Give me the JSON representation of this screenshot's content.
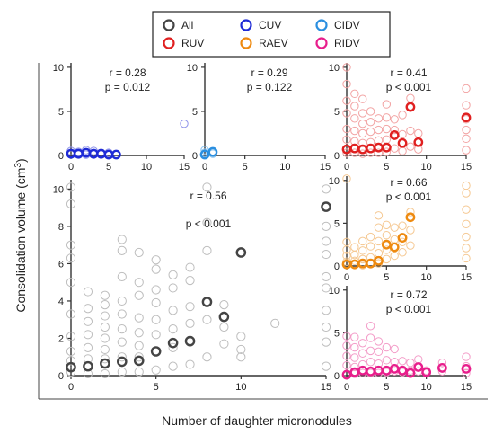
{
  "figure": {
    "xlabel": "Number of daughter micronodules",
    "ylabel": "Consolidation volume (cm",
    "ylabel_sup": "3",
    "ylabel_close": ")"
  },
  "legend": {
    "placement": "top-center",
    "entries": [
      {
        "name": "All",
        "color": "#444444"
      },
      {
        "name": "CUV",
        "color": "#1f2bd6"
      },
      {
        "name": "CIDV",
        "color": "#2b8fe0"
      },
      {
        "name": "RUV",
        "color": "#e02020"
      },
      {
        "name": "RAEV",
        "color": "#ee8a10"
      },
      {
        "name": "RIDV",
        "color": "#e81e8c"
      }
    ]
  },
  "chart_data": [
    {
      "id": "all",
      "type": "scatter",
      "color": "#444444",
      "raw_color": "#bdbdbd",
      "xlim": [
        0,
        15
      ],
      "ylim": [
        0,
        10.5
      ],
      "xticks": [
        "0",
        "5",
        "10",
        "15"
      ],
      "xtick_values": [
        0,
        5,
        10,
        15
      ],
      "yticks": [
        "0",
        "2",
        "4",
        "6",
        "8",
        "10"
      ],
      "ytick_values": [
        0,
        2,
        4,
        6,
        8,
        10
      ],
      "stat_r": "r = 0.56",
      "stat_p": "p < 0.001",
      "means": [
        [
          0,
          0.45
        ],
        [
          1,
          0.5
        ],
        [
          2,
          0.65
        ],
        [
          3,
          0.75
        ],
        [
          4,
          0.8
        ],
        [
          5,
          1.3
        ],
        [
          6,
          1.75
        ],
        [
          7,
          1.85
        ],
        [
          8,
          3.95
        ],
        [
          9,
          3.15
        ],
        [
          10,
          6.6
        ],
        [
          15,
          9.05
        ]
      ],
      "raw": [
        [
          0,
          0.2
        ],
        [
          0,
          0.8
        ],
        [
          0,
          1.3
        ],
        [
          0,
          2.1
        ],
        [
          0,
          3.3
        ],
        [
          0,
          5.0
        ],
        [
          0,
          6.3
        ],
        [
          0,
          7.0
        ],
        [
          0,
          9.2
        ],
        [
          0,
          10.1
        ],
        [
          1,
          0.1
        ],
        [
          1,
          0.9
        ],
        [
          1,
          1.5
        ],
        [
          1,
          2.2
        ],
        [
          1,
          2.9
        ],
        [
          1,
          3.6
        ],
        [
          1,
          4.5
        ],
        [
          2,
          0.1
        ],
        [
          2,
          0.9
        ],
        [
          2,
          1.4
        ],
        [
          2,
          2.0
        ],
        [
          2,
          2.6
        ],
        [
          2,
          3.2
        ],
        [
          2,
          3.8
        ],
        [
          2,
          4.3
        ],
        [
          3,
          0.2
        ],
        [
          3,
          1.0
        ],
        [
          3,
          1.8
        ],
        [
          3,
          2.5
        ],
        [
          3,
          3.3
        ],
        [
          3,
          4.0
        ],
        [
          3,
          5.3
        ],
        [
          3,
          6.7
        ],
        [
          3,
          7.3
        ],
        [
          4,
          0.2
        ],
        [
          4,
          1.0
        ],
        [
          4,
          1.6
        ],
        [
          4,
          2.3
        ],
        [
          4,
          3.1
        ],
        [
          4,
          4.3
        ],
        [
          4,
          5.0
        ],
        [
          4,
          6.6
        ],
        [
          5,
          0.3
        ],
        [
          5,
          1.3
        ],
        [
          5,
          2.2
        ],
        [
          5,
          3.0
        ],
        [
          5,
          3.9
        ],
        [
          5,
          4.6
        ],
        [
          5,
          5.7
        ],
        [
          5,
          6.2
        ],
        [
          6,
          0.5
        ],
        [
          6,
          1.5
        ],
        [
          6,
          2.5
        ],
        [
          6,
          3.5
        ],
        [
          6,
          4.7
        ],
        [
          6,
          5.4
        ],
        [
          7,
          0.6
        ],
        [
          7,
          1.8
        ],
        [
          7,
          2.8
        ],
        [
          7,
          3.7
        ],
        [
          7,
          5.1
        ],
        [
          7,
          5.8
        ],
        [
          8,
          1.0
        ],
        [
          8,
          3.0
        ],
        [
          8,
          6.7
        ],
        [
          8,
          8.2
        ],
        [
          8,
          10.1
        ],
        [
          9,
          1.7
        ],
        [
          9,
          2.6
        ],
        [
          9,
          3.8
        ],
        [
          10,
          1.0
        ],
        [
          10,
          1.4
        ],
        [
          10,
          2.1
        ],
        [
          12,
          2.8
        ],
        [
          15,
          0.5
        ],
        [
          15,
          1.8
        ],
        [
          15,
          2.6
        ],
        [
          15,
          3.5
        ],
        [
          15,
          4.7
        ],
        [
          15,
          5.3
        ],
        [
          15,
          6.5
        ],
        [
          15,
          7.2
        ],
        [
          15,
          8.0
        ],
        [
          15,
          10.0
        ]
      ]
    },
    {
      "id": "cuv",
      "type": "scatter",
      "color": "#1f2bd6",
      "raw_color": "#8f93ea",
      "xlim": [
        0,
        15
      ],
      "ylim": [
        0,
        10.5
      ],
      "xticks": [
        "0",
        "5",
        "10",
        "15"
      ],
      "xtick_values": [
        0,
        5,
        10,
        15
      ],
      "yticks": [
        "0",
        "5",
        "10"
      ],
      "ytick_values": [
        0,
        5,
        10
      ],
      "stat_r": "r = 0.28",
      "stat_p": "p = 0.012",
      "means": [
        [
          0,
          0.2
        ],
        [
          1,
          0.2
        ],
        [
          2,
          0.3
        ],
        [
          3,
          0.2
        ],
        [
          4,
          0.2
        ],
        [
          5,
          0.1
        ],
        [
          6,
          0.1
        ]
      ],
      "raw": [
        [
          0,
          0.1
        ],
        [
          0,
          0.5
        ],
        [
          1,
          0.1
        ],
        [
          1,
          0.4
        ],
        [
          2,
          0.1
        ],
        [
          2,
          0.6
        ],
        [
          3,
          0.1
        ],
        [
          3,
          0.5
        ],
        [
          4,
          0.1
        ],
        [
          5,
          0.3
        ],
        [
          15,
          3.6
        ]
      ]
    },
    {
      "id": "cidv",
      "type": "scatter",
      "color": "#2b8fe0",
      "raw_color": "#8cc4ef",
      "xlim": [
        0,
        15
      ],
      "ylim": [
        0,
        10.5
      ],
      "xticks": [
        "0",
        "5",
        "10",
        "15"
      ],
      "xtick_values": [
        0,
        5,
        10,
        15
      ],
      "yticks": [
        "0",
        "5",
        "10"
      ],
      "ytick_values": [
        0,
        5,
        10
      ],
      "stat_r": "r = 0.29",
      "stat_p": "p = 0.122",
      "means": [
        [
          0,
          0.1
        ],
        [
          1,
          0.4
        ]
      ],
      "raw": [
        [
          0,
          0.3
        ],
        [
          0,
          0.6
        ],
        [
          1,
          0.2
        ]
      ]
    },
    {
      "id": "ruv",
      "type": "scatter",
      "color": "#e02020",
      "raw_color": "#f2a3a3",
      "xlim": [
        0,
        15
      ],
      "ylim": [
        0,
        10.5
      ],
      "xticks": [
        "0",
        "5",
        "10",
        "15"
      ],
      "xtick_values": [
        0,
        5,
        10,
        15
      ],
      "yticks": [
        "0",
        "5",
        "10"
      ],
      "ytick_values": [
        0,
        5,
        10
      ],
      "stat_r": "r = 0.41",
      "stat_p": "p < 0.001",
      "means": [
        [
          0,
          0.7
        ],
        [
          1,
          0.8
        ],
        [
          2,
          0.7
        ],
        [
          3,
          0.8
        ],
        [
          4,
          0.9
        ],
        [
          5,
          0.9
        ],
        [
          6,
          2.3
        ],
        [
          7,
          1.4
        ],
        [
          8,
          5.5
        ],
        [
          9,
          1.5
        ],
        [
          15,
          4.3
        ]
      ],
      "raw": [
        [
          0,
          0.3
        ],
        [
          0,
          1.8
        ],
        [
          0,
          3.0
        ],
        [
          0,
          4.8
        ],
        [
          0,
          6.2
        ],
        [
          0,
          8.1
        ],
        [
          0,
          10.0
        ],
        [
          1,
          0.3
        ],
        [
          1,
          1.6
        ],
        [
          1,
          2.8
        ],
        [
          1,
          4.2
        ],
        [
          1,
          5.6
        ],
        [
          1,
          7.0
        ],
        [
          2,
          0.2
        ],
        [
          2,
          1.4
        ],
        [
          2,
          2.5
        ],
        [
          2,
          3.6
        ],
        [
          2,
          4.8
        ],
        [
          2,
          6.4
        ],
        [
          3,
          0.3
        ],
        [
          3,
          1.5
        ],
        [
          3,
          2.7
        ],
        [
          3,
          3.8
        ],
        [
          3,
          5.0
        ],
        [
          4,
          0.3
        ],
        [
          4,
          1.7
        ],
        [
          4,
          2.9
        ],
        [
          4,
          4.2
        ],
        [
          5,
          0.4
        ],
        [
          5,
          1.8
        ],
        [
          5,
          3.0
        ],
        [
          5,
          4.3
        ],
        [
          5,
          5.8
        ],
        [
          6,
          0.8
        ],
        [
          6,
          2.9
        ],
        [
          6,
          4.1
        ],
        [
          7,
          0.5
        ],
        [
          7,
          2.4
        ],
        [
          7,
          4.6
        ],
        [
          8,
          1.0
        ],
        [
          8,
          2.8
        ],
        [
          8,
          6.5
        ],
        [
          9,
          0.7
        ],
        [
          9,
          2.5
        ],
        [
          15,
          0.6
        ],
        [
          15,
          1.9
        ],
        [
          15,
          2.9
        ],
        [
          15,
          4.1
        ],
        [
          15,
          5.7
        ],
        [
          15,
          7.6
        ]
      ]
    },
    {
      "id": "raev",
      "type": "scatter",
      "color": "#ee8a10",
      "raw_color": "#f5c892",
      "xlim": [
        0,
        15
      ],
      "ylim": [
        0,
        10.5
      ],
      "xticks": [
        "0",
        "5",
        "10",
        "15"
      ],
      "xtick_values": [
        0,
        5,
        10,
        15
      ],
      "yticks": [
        "0",
        "5",
        "10"
      ],
      "ytick_values": [
        0,
        5,
        10
      ],
      "stat_r": "r = 0.66",
      "stat_p": "p < 0.001",
      "means": [
        [
          0,
          0.2
        ],
        [
          1,
          0.2
        ],
        [
          2,
          0.3
        ],
        [
          3,
          0.3
        ],
        [
          4,
          0.6
        ],
        [
          5,
          2.5
        ],
        [
          6,
          2.2
        ],
        [
          7,
          3.3
        ],
        [
          8,
          5.7
        ]
      ],
      "raw": [
        [
          0,
          0.1
        ],
        [
          0,
          0.5
        ],
        [
          0,
          1.2
        ],
        [
          0,
          1.9
        ],
        [
          0,
          2.8
        ],
        [
          0,
          10.2
        ],
        [
          1,
          0.1
        ],
        [
          1,
          0.6
        ],
        [
          1,
          1.3
        ],
        [
          1,
          2.2
        ],
        [
          2,
          0.1
        ],
        [
          2,
          0.8
        ],
        [
          2,
          1.8
        ],
        [
          2,
          2.9
        ],
        [
          3,
          0.2
        ],
        [
          3,
          1.0
        ],
        [
          3,
          2.3
        ],
        [
          3,
          3.4
        ],
        [
          4,
          0.3
        ],
        [
          4,
          1.5
        ],
        [
          4,
          2.9
        ],
        [
          4,
          4.5
        ],
        [
          4,
          5.9
        ],
        [
          5,
          0.8
        ],
        [
          5,
          1.9
        ],
        [
          5,
          3.6
        ],
        [
          5,
          4.8
        ],
        [
          6,
          1.2
        ],
        [
          6,
          3.1
        ],
        [
          6,
          4.5
        ],
        [
          7,
          1.6
        ],
        [
          7,
          2.8
        ],
        [
          7,
          4.7
        ],
        [
          8,
          2.4
        ],
        [
          8,
          4.2
        ],
        [
          8,
          6.3
        ],
        [
          15,
          0.9
        ],
        [
          15,
          2.1
        ],
        [
          15,
          3.4
        ],
        [
          15,
          4.9
        ],
        [
          15,
          6.6
        ],
        [
          15,
          8.5
        ],
        [
          15,
          9.4
        ]
      ]
    },
    {
      "id": "ridv",
      "type": "scatter",
      "color": "#e81e8c",
      "raw_color": "#f39cc8",
      "xlim": [
        0,
        15
      ],
      "ylim": [
        0,
        10.5
      ],
      "xticks": [
        "0",
        "5",
        "10",
        "15"
      ],
      "xtick_values": [
        0,
        5,
        10,
        15
      ],
      "yticks": [
        "0",
        "5",
        "10"
      ],
      "ytick_values": [
        0,
        5,
        10
      ],
      "stat_r": "r = 0.72",
      "stat_p": "p < 0.001",
      "means": [
        [
          0,
          0.1
        ],
        [
          1,
          0.4
        ],
        [
          2,
          0.6
        ],
        [
          3,
          0.5
        ],
        [
          4,
          0.6
        ],
        [
          5,
          0.6
        ],
        [
          6,
          0.8
        ],
        [
          7,
          0.6
        ],
        [
          8,
          0.3
        ],
        [
          9,
          1.0
        ],
        [
          10,
          0.4
        ],
        [
          12,
          0.9
        ],
        [
          15,
          0.8
        ]
      ],
      "raw": [
        [
          0,
          0.2
        ],
        [
          0,
          1.2
        ],
        [
          0,
          2.3
        ],
        [
          0,
          3.5
        ],
        [
          0,
          4.6
        ],
        [
          1,
          0.2
        ],
        [
          1,
          1.0
        ],
        [
          1,
          2.1
        ],
        [
          1,
          3.3
        ],
        [
          1,
          4.5
        ],
        [
          2,
          0.3
        ],
        [
          2,
          1.3
        ],
        [
          2,
          2.6
        ],
        [
          2,
          3.8
        ],
        [
          3,
          0.3
        ],
        [
          3,
          1.6
        ],
        [
          3,
          2.9
        ],
        [
          3,
          4.4
        ],
        [
          3,
          5.8
        ],
        [
          4,
          0.3
        ],
        [
          4,
          1.4
        ],
        [
          4,
          2.8
        ],
        [
          4,
          4.0
        ],
        [
          5,
          0.4
        ],
        [
          5,
          1.8
        ],
        [
          5,
          3.3
        ],
        [
          6,
          0.5
        ],
        [
          6,
          1.6
        ],
        [
          6,
          3.1
        ],
        [
          7,
          0.4
        ],
        [
          7,
          1.7
        ],
        [
          8,
          0.6
        ],
        [
          8,
          1.5
        ],
        [
          9,
          0.5
        ],
        [
          9,
          1.9
        ],
        [
          10,
          0.6
        ],
        [
          12,
          0.5
        ],
        [
          12,
          1.5
        ],
        [
          15,
          0.3
        ],
        [
          15,
          1.1
        ],
        [
          15,
          2.2
        ]
      ]
    }
  ]
}
